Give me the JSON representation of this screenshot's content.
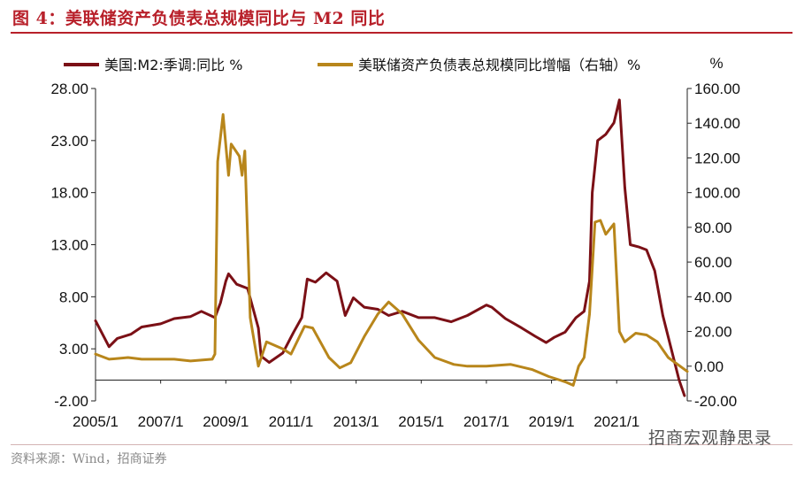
{
  "figure_title": "图 4：美联储资产负债表总规模同比与 M2 同比",
  "source": "资料来源：Wind，招商证券",
  "watermark": "招商宏观静思录",
  "chart_data": {
    "type": "line",
    "title": "",
    "x_tick_labels": [
      "2005/1",
      "2007/1",
      "2009/1",
      "2011/1",
      "2013/1",
      "2015/1",
      "2017/1",
      "2019/1",
      "2021/1"
    ],
    "x_range": [
      "2005-01",
      "2023-03"
    ],
    "left_axis": {
      "ticks": [
        "28.00",
        "23.00",
        "18.00",
        "13.00",
        "8.00",
        "3.00",
        "-2.00"
      ],
      "ylim": [
        -2,
        28
      ]
    },
    "right_axis": {
      "ticks": [
        "160.00",
        "140.00",
        "120.00",
        "100.00",
        "80.00",
        "60.00",
        "40.00",
        "20.00",
        "0.00",
        "-20.00"
      ],
      "ylim": [
        -20,
        160
      ],
      "label": "%"
    },
    "legend_placement": "top",
    "series": [
      {
        "name": "美国:M2:季调:同比 %",
        "axis": "left",
        "color": "#7b1016",
        "points": [
          [
            "2005-01",
            5.7
          ],
          [
            "2005-06",
            3.2
          ],
          [
            "2005-09",
            4.0
          ],
          [
            "2006-02",
            4.4
          ],
          [
            "2006-06",
            5.1
          ],
          [
            "2007-01",
            5.4
          ],
          [
            "2007-06",
            5.9
          ],
          [
            "2007-12",
            6.1
          ],
          [
            "2008-04",
            6.6
          ],
          [
            "2008-09",
            6.0
          ],
          [
            "2008-11",
            7.4
          ],
          [
            "2009-01",
            9.5
          ],
          [
            "2009-02",
            10.2
          ],
          [
            "2009-05",
            9.2
          ],
          [
            "2009-09",
            8.8
          ],
          [
            "2010-01",
            5.0
          ],
          [
            "2010-02",
            2.3
          ],
          [
            "2010-05",
            1.7
          ],
          [
            "2010-10",
            2.6
          ],
          [
            "2011-02",
            4.6
          ],
          [
            "2011-05",
            6.0
          ],
          [
            "2011-07",
            9.7
          ],
          [
            "2011-10",
            9.4
          ],
          [
            "2012-02",
            10.3
          ],
          [
            "2012-06",
            9.5
          ],
          [
            "2012-09",
            6.2
          ],
          [
            "2012-12",
            7.9
          ],
          [
            "2013-04",
            7.0
          ],
          [
            "2013-09",
            6.8
          ],
          [
            "2014-01",
            6.2
          ],
          [
            "2014-06",
            6.6
          ],
          [
            "2014-12",
            6.0
          ],
          [
            "2015-06",
            6.0
          ],
          [
            "2015-12",
            5.6
          ],
          [
            "2016-06",
            6.2
          ],
          [
            "2017-01",
            7.2
          ],
          [
            "2017-03",
            7.0
          ],
          [
            "2017-08",
            5.9
          ],
          [
            "2018-02",
            5.0
          ],
          [
            "2018-07",
            4.2
          ],
          [
            "2018-11",
            3.6
          ],
          [
            "2019-02",
            4.1
          ],
          [
            "2019-06",
            4.6
          ],
          [
            "2019-10",
            6.0
          ],
          [
            "2020-01",
            6.6
          ],
          [
            "2020-03",
            9.5
          ],
          [
            "2020-04",
            18.0
          ],
          [
            "2020-06",
            23.0
          ],
          [
            "2020-09",
            23.6
          ],
          [
            "2020-12",
            24.7
          ],
          [
            "2021-02",
            26.9
          ],
          [
            "2021-04",
            18.5
          ],
          [
            "2021-06",
            13.0
          ],
          [
            "2021-09",
            12.8
          ],
          [
            "2021-12",
            12.5
          ],
          [
            "2022-03",
            10.5
          ],
          [
            "2022-06",
            6.2
          ],
          [
            "2022-09",
            3.1
          ],
          [
            "2022-12",
            0.0
          ],
          [
            "2023-02",
            -1.5
          ]
        ]
      },
      {
        "name": "美联储资产负债表总规模同比增幅（右轴）%",
        "axis": "right",
        "color": "#b8861b",
        "points": [
          [
            "2005-01",
            7
          ],
          [
            "2005-06",
            4
          ],
          [
            "2006-01",
            5
          ],
          [
            "2006-06",
            4
          ],
          [
            "2007-01",
            4
          ],
          [
            "2007-06",
            4
          ],
          [
            "2007-12",
            3
          ],
          [
            "2008-08",
            4
          ],
          [
            "2008-09",
            7
          ],
          [
            "2008-10",
            118
          ],
          [
            "2008-12",
            145
          ],
          [
            "2009-02",
            110
          ],
          [
            "2009-03",
            128
          ],
          [
            "2009-06",
            121
          ],
          [
            "2009-07",
            110
          ],
          [
            "2009-08",
            124
          ],
          [
            "2009-10",
            28
          ],
          [
            "2010-01",
            0
          ],
          [
            "2010-04",
            14
          ],
          [
            "2010-10",
            10
          ],
          [
            "2011-01",
            7
          ],
          [
            "2011-06",
            23
          ],
          [
            "2011-09",
            22
          ],
          [
            "2012-03",
            5
          ],
          [
            "2012-07",
            -1
          ],
          [
            "2012-11",
            2
          ],
          [
            "2013-04",
            17
          ],
          [
            "2013-09",
            30
          ],
          [
            "2014-01",
            37
          ],
          [
            "2014-06",
            30
          ],
          [
            "2014-12",
            15
          ],
          [
            "2015-06",
            5
          ],
          [
            "2016-01",
            1
          ],
          [
            "2016-06",
            0
          ],
          [
            "2017-01",
            0
          ],
          [
            "2017-10",
            1
          ],
          [
            "2018-06",
            -2
          ],
          [
            "2018-12",
            -6
          ],
          [
            "2019-06",
            -9
          ],
          [
            "2019-09",
            -11
          ],
          [
            "2019-11",
            0
          ],
          [
            "2020-01",
            5
          ],
          [
            "2020-03",
            30
          ],
          [
            "2020-05",
            83
          ],
          [
            "2020-07",
            84
          ],
          [
            "2020-09",
            76
          ],
          [
            "2020-12",
            82
          ],
          [
            "2021-02",
            20
          ],
          [
            "2021-04",
            14
          ],
          [
            "2021-08",
            19
          ],
          [
            "2021-12",
            18
          ],
          [
            "2022-04",
            14
          ],
          [
            "2022-08",
            5
          ],
          [
            "2023-03",
            -3
          ]
        ]
      }
    ]
  }
}
